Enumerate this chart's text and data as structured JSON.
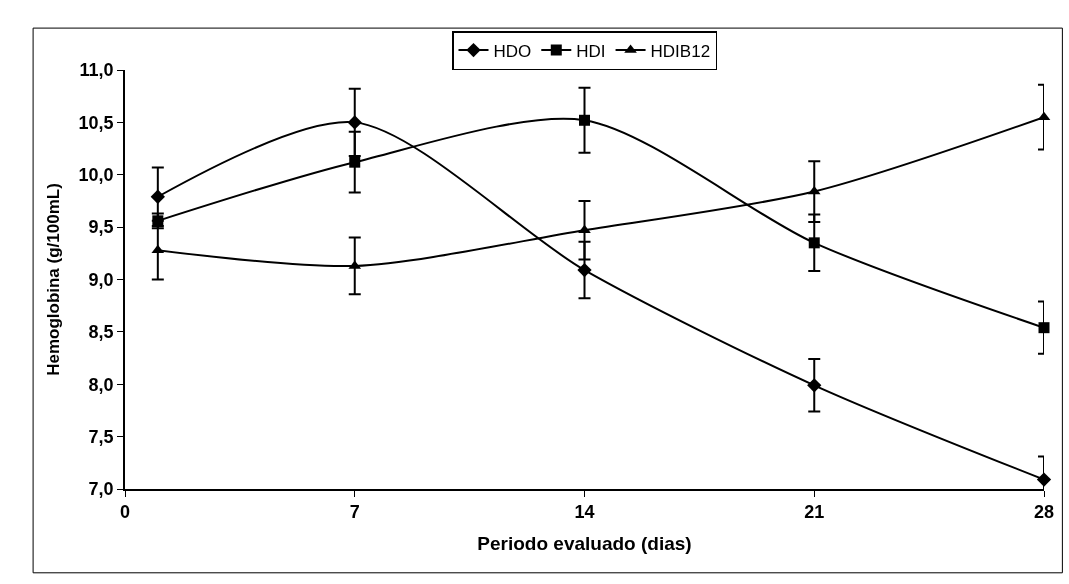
{
  "chart_data": {
    "type": "line",
    "xlabel": "Periodo evaluado (dias)",
    "ylabel": "Hemoglobina (g/100mL)",
    "x": [
      1,
      7,
      14,
      21,
      28
    ],
    "xlim": [
      0,
      28
    ],
    "xticks": [
      0,
      7,
      14,
      21,
      28
    ],
    "ylim": [
      7.0,
      11.0
    ],
    "yticks": [
      {
        "value": 7.0,
        "label": "7,0"
      },
      {
        "value": 7.5,
        "label": "7,5"
      },
      {
        "value": 8.0,
        "label": "8,0"
      },
      {
        "value": 8.5,
        "label": "8,5"
      },
      {
        "value": 9.0,
        "label": "9,0"
      },
      {
        "value": 9.5,
        "label": "9,5"
      },
      {
        "value": 10.0,
        "label": "10,0"
      },
      {
        "value": 10.5,
        "label": "10,5"
      },
      {
        "value": 11.0,
        "label": "11,0"
      }
    ],
    "legend": "top",
    "line_style": "solid",
    "series": [
      {
        "name": "HDO",
        "color": "#000000",
        "marker": "diamond",
        "values": [
          9.79,
          10.5,
          9.09,
          7.99,
          7.09
        ],
        "errors": [
          0.28,
          0.32,
          0.27,
          0.25,
          0.22
        ]
      },
      {
        "name": "HDI",
        "color": "#000000",
        "marker": "square",
        "values": [
          9.56,
          10.12,
          10.52,
          9.35,
          8.54
        ],
        "errors": [
          0.07,
          0.29,
          0.31,
          0.27,
          0.25
        ]
      },
      {
        "name": "HDIB12",
        "color": "#000000",
        "marker": "triangle",
        "values": [
          9.28,
          9.13,
          9.47,
          9.84,
          10.55
        ],
        "errors": [
          0.28,
          0.27,
          0.28,
          0.29,
          0.31
        ]
      }
    ]
  }
}
